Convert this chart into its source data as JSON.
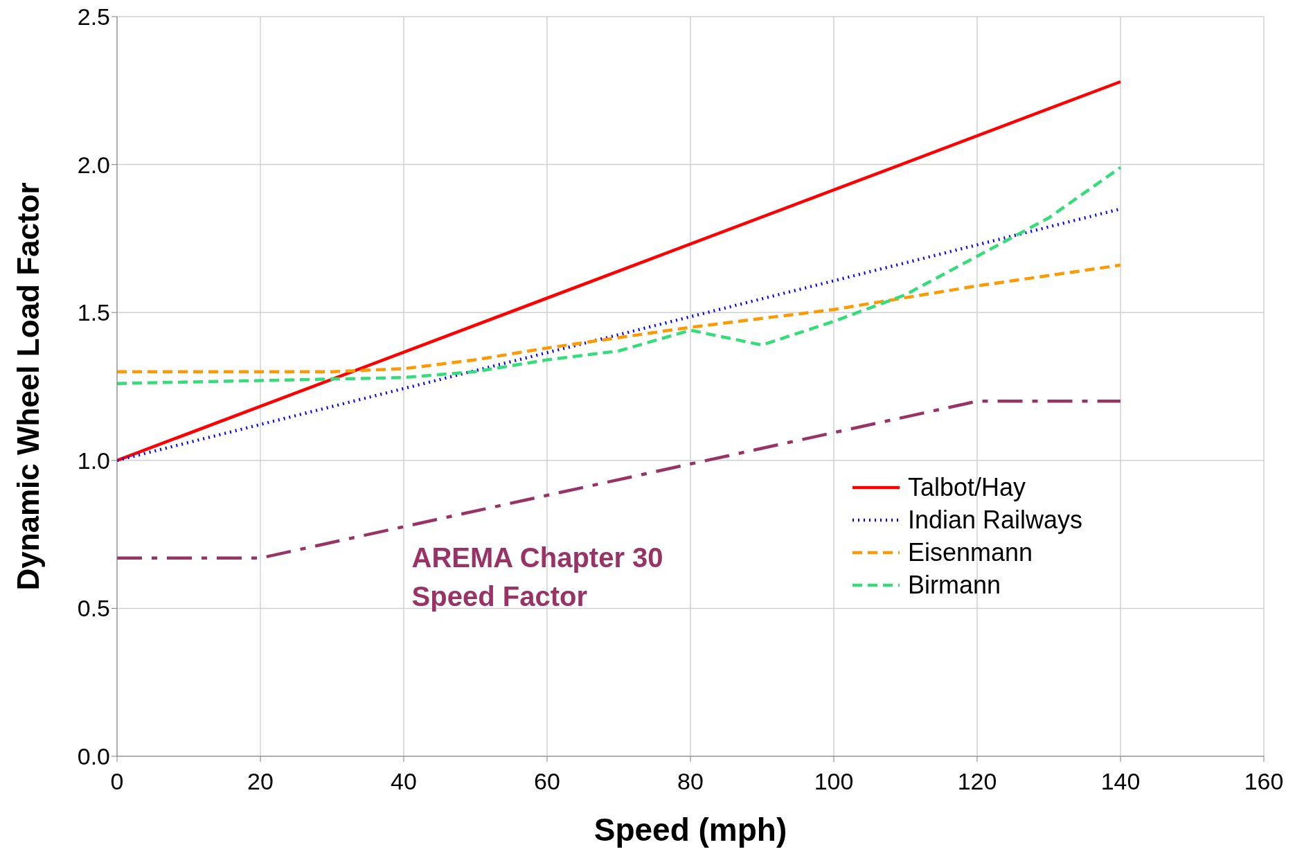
{
  "chart_data": {
    "type": "line",
    "xlabel": "Speed (mph)",
    "ylabel": "Dynamic Wheel Load Factor",
    "xlim": [
      0,
      160
    ],
    "xticks": [
      0,
      20,
      40,
      60,
      80,
      100,
      120,
      140,
      160
    ],
    "ylim": [
      0,
      2.5
    ],
    "yticks": [
      {
        "value": 0,
        "label": "0.0"
      },
      {
        "value": 0.5,
        "label": "0.5"
      },
      {
        "value": 1,
        "label": "1.0"
      },
      {
        "value": 1.5,
        "label": "1.5"
      },
      {
        "value": 2,
        "label": "2.0"
      },
      {
        "value": 2.5,
        "label": "2.5"
      }
    ],
    "grid": true,
    "legend": "right",
    "marker": "none",
    "series": [
      {
        "name": "Talbot/Hay",
        "color": "#ff0000",
        "line_style": "solid",
        "x": [
          0,
          140
        ],
        "values": [
          1.0,
          2.28
        ]
      },
      {
        "name": "Indian Railways",
        "color": "#0000ff",
        "line_style": "dotted",
        "x": [
          0,
          140
        ],
        "values": [
          1.0,
          1.85
        ]
      },
      {
        "name": "Eisenmann",
        "color": "#ff9900",
        "line_style": "dashed",
        "x": [
          0,
          20,
          30,
          40,
          50,
          60,
          80,
          100,
          120,
          140
        ],
        "values": [
          1.3,
          1.3,
          1.3,
          1.31,
          1.34,
          1.38,
          1.45,
          1.51,
          1.59,
          1.66
        ]
      },
      {
        "name": "Birmann",
        "color": "#33dd77",
        "line_style": "dashed",
        "x": [
          0,
          20,
          40,
          50,
          60,
          70,
          80,
          90,
          100,
          110,
          120,
          130,
          140
        ],
        "values": [
          1.26,
          1.27,
          1.28,
          1.3,
          1.34,
          1.37,
          1.44,
          1.39,
          1.47,
          1.56,
          1.69,
          1.82,
          1.99
        ]
      },
      {
        "name": "AREMA Chapter 30 Speed Factor",
        "color": "#993366",
        "line_style": "dashdot",
        "x": [
          0,
          20,
          120,
          140
        ],
        "values": [
          0.67,
          0.67,
          1.2,
          1.2
        ]
      }
    ]
  }
}
